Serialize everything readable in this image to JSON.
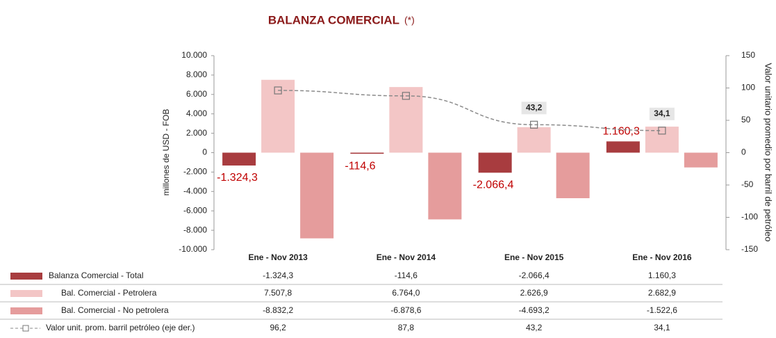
{
  "chart_data": {
    "type": "bar-line",
    "title": "BALANZA COMERCIAL",
    "title_note": "(*)",
    "y_label": "millones de USD - FOB",
    "y2_label": "Valor unitario promedio por barril de petróleo",
    "categories": [
      "Ene - Nov  2013",
      "Ene - Nov  2014",
      "Ene - Nov  2015",
      "Ene - Nov  2016"
    ],
    "series": [
      {
        "name": "Balanza Comercial - Total",
        "type": "bar",
        "color": "#a83c3f",
        "values": [
          -1324.3,
          -114.6,
          -2066.4,
          1160.3
        ],
        "value_labels": [
          "-1.324,3",
          "-114,6",
          "-2.066,4",
          "1.160,3"
        ]
      },
      {
        "name": "Bal. Comercial - Petrolera",
        "type": "bar",
        "color": "#f3c6c6",
        "values": [
          7507.8,
          6764.0,
          2626.9,
          2682.9
        ],
        "value_labels": [
          "7.507,8",
          "6.764,0",
          "2.626,9",
          "2.682,9"
        ]
      },
      {
        "name": "Bal. Comercial - No petrolera",
        "type": "bar",
        "color": "#e59c9c",
        "values": [
          -8832.2,
          -6878.6,
          -4693.2,
          -1522.6
        ],
        "value_labels": [
          "-8.832,2",
          "-6.878,6",
          "-4.693,2",
          "-1.522,6"
        ]
      },
      {
        "name": "Valor unit. prom. barril petróleo (eje der.)",
        "type": "line",
        "axis": "y2",
        "color": "#8a8a8a",
        "values": [
          96.2,
          87.8,
          43.2,
          34.1
        ],
        "value_labels": [
          "96,2",
          "87,8",
          "43,2",
          "34,1"
        ]
      }
    ],
    "ylim": [
      -10000,
      10000
    ],
    "yticks": [
      {
        "value": -10000,
        "label": "-10.000"
      },
      {
        "value": -8000,
        "label": "-8.000"
      },
      {
        "value": -6000,
        "label": "-6.000"
      },
      {
        "value": -4000,
        "label": "-4.000"
      },
      {
        "value": -2000,
        "label": "-2.000"
      },
      0,
      {
        "value": 2000,
        "label": "2.000"
      },
      {
        "value": 4000,
        "label": "4.000"
      },
      {
        "value": 6000,
        "label": "6.000"
      },
      {
        "value": 8000,
        "label": "8.000"
      },
      {
        "value": 10000,
        "label": "10.000"
      }
    ],
    "y2lim": [
      -150,
      150
    ],
    "y2ticks": [
      -150,
      -100,
      -50,
      0,
      50,
      100,
      150
    ]
  }
}
